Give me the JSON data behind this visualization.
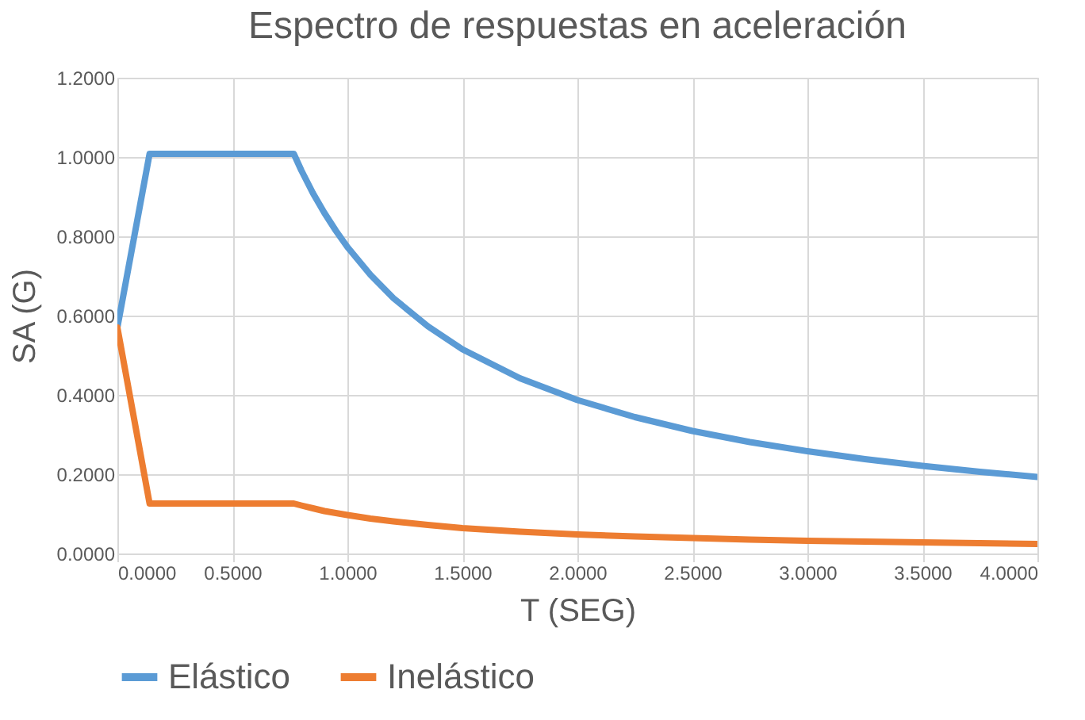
{
  "chart_data": {
    "type": "line",
    "title": "Espectro de respuestas en aceleración",
    "xlabel": "T (SEG)",
    "ylabel": "SA (G)",
    "x": [
      0,
      0.14,
      0.767,
      0.8,
      0.85,
      0.9,
      0.95,
      1.0,
      1.1,
      1.2,
      1.35,
      1.5,
      1.75,
      2.0,
      2.25,
      2.5,
      2.75,
      3.0,
      3.25,
      3.5,
      3.75,
      4.0
    ],
    "series": [
      {
        "name": "Elástico",
        "color": "#5b9bd5",
        "values": [
          0.57,
          1.008,
          1.008,
          0.966,
          0.909,
          0.859,
          0.814,
          0.773,
          0.703,
          0.644,
          0.573,
          0.515,
          0.442,
          0.387,
          0.344,
          0.309,
          0.281,
          0.258,
          0.238,
          0.221,
          0.206,
          0.193
        ]
      },
      {
        "name": "Inelástico",
        "color": "#ed7d31",
        "values": [
          0.57,
          0.126,
          0.126,
          0.121,
          0.114,
          0.107,
          0.102,
          0.097,
          0.088,
          0.081,
          0.072,
          0.064,
          0.055,
          0.048,
          0.043,
          0.039,
          0.035,
          0.032,
          0.03,
          0.028,
          0.026,
          0.024
        ]
      }
    ],
    "xlim": [
      0,
      4
    ],
    "ylim": [
      0,
      1.2
    ],
    "xticks": [
      {
        "value": 0,
        "label": "0.0000"
      },
      {
        "value": 0.5,
        "label": "0.5000"
      },
      {
        "value": 1,
        "label": "1.0000"
      },
      {
        "value": 1.5,
        "label": "1.5000"
      },
      {
        "value": 2,
        "label": "2.0000"
      },
      {
        "value": 2.5,
        "label": "2.5000"
      },
      {
        "value": 3,
        "label": "3.0000"
      },
      {
        "value": 3.5,
        "label": "3.5000"
      },
      {
        "value": 4,
        "label": "4.0000"
      }
    ],
    "yticks": [
      {
        "value": 0,
        "label": "0.0000"
      },
      {
        "value": 0.2,
        "label": "0.2000"
      },
      {
        "value": 0.4,
        "label": "0.4000"
      },
      {
        "value": 0.6,
        "label": "0.6000"
      },
      {
        "value": 0.8,
        "label": "0.8000"
      },
      {
        "value": 1.0,
        "label": "1.0000"
      },
      {
        "value": 1.2,
        "label": "1.2000"
      }
    ],
    "grid": true,
    "legend": "bottom",
    "marker": "none",
    "line_style": "solid"
  }
}
